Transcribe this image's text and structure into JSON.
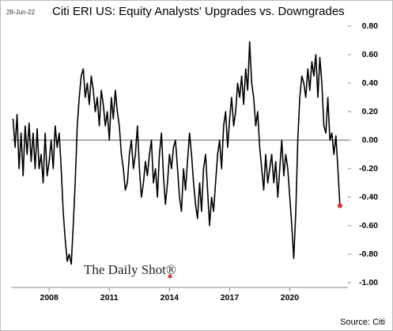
{
  "chart_data": {
    "type": "line",
    "date": "28-Jun-22",
    "title": "Citi ERI US: Equity Analysts' Upgrades vs. Downgrades",
    "watermark": "The Daily Shot®",
    "source": "Source: Citi",
    "x": [
      2006.2,
      2006.3,
      2006.4,
      2006.5,
      2006.6,
      2006.7,
      2006.8,
      2006.9,
      2007.0,
      2007.1,
      2007.2,
      2007.3,
      2007.4,
      2007.5,
      2007.6,
      2007.7,
      2007.8,
      2007.9,
      2008.0,
      2008.1,
      2008.2,
      2008.3,
      2008.4,
      2008.5,
      2008.6,
      2008.7,
      2008.8,
      2008.9,
      2009.0,
      2009.1,
      2009.2,
      2009.3,
      2009.4,
      2009.5,
      2009.6,
      2009.7,
      2009.8,
      2009.9,
      2010.0,
      2010.1,
      2010.2,
      2010.3,
      2010.4,
      2010.5,
      2010.6,
      2010.7,
      2010.8,
      2010.9,
      2011.0,
      2011.1,
      2011.2,
      2011.3,
      2011.4,
      2011.5,
      2011.6,
      2011.7,
      2011.8,
      2011.9,
      2012.0,
      2012.1,
      2012.2,
      2012.3,
      2012.4,
      2012.5,
      2012.6,
      2012.7,
      2012.8,
      2012.9,
      2013.0,
      2013.1,
      2013.2,
      2013.3,
      2013.4,
      2013.5,
      2013.6,
      2013.7,
      2013.8,
      2013.9,
      2014.0,
      2014.1,
      2014.2,
      2014.3,
      2014.4,
      2014.5,
      2014.6,
      2014.7,
      2014.8,
      2014.9,
      2015.0,
      2015.1,
      2015.2,
      2015.3,
      2015.4,
      2015.5,
      2015.6,
      2015.7,
      2015.8,
      2015.9,
      2016.0,
      2016.1,
      2016.2,
      2016.3,
      2016.4,
      2016.5,
      2016.6,
      2016.7,
      2016.8,
      2016.9,
      2017.0,
      2017.1,
      2017.2,
      2017.3,
      2017.4,
      2017.5,
      2017.6,
      2017.7,
      2017.8,
      2017.9,
      2018.0,
      2018.1,
      2018.2,
      2018.3,
      2018.4,
      2018.5,
      2018.6,
      2018.7,
      2018.8,
      2018.9,
      2019.0,
      2019.1,
      2019.2,
      2019.3,
      2019.4,
      2019.5,
      2019.6,
      2019.7,
      2019.8,
      2019.9,
      2020.0,
      2020.1,
      2020.2,
      2020.3,
      2020.4,
      2020.5,
      2020.6,
      2020.7,
      2020.8,
      2020.9,
      2021.0,
      2021.1,
      2021.2,
      2021.3,
      2021.4,
      2021.5,
      2021.6,
      2021.7,
      2021.8,
      2021.9,
      2022.0,
      2022.1,
      2022.2,
      2022.3,
      2022.4,
      2022.5
    ],
    "series": [
      {
        "color": "#000000",
        "last_point_color": "#e03030",
        "values": [
          0.15,
          -0.05,
          0.18,
          -0.2,
          0.05,
          -0.25,
          0.1,
          -0.1,
          0.12,
          -0.15,
          0.05,
          -0.2,
          0.08,
          -0.2,
          -0.1,
          -0.3,
          0.05,
          -0.25,
          -0.15,
          0.0,
          -0.2,
          0.1,
          -0.05,
          0.05,
          -0.2,
          -0.5,
          -0.7,
          -0.85,
          -0.8,
          -0.87,
          -0.6,
          -0.3,
          0.1,
          0.3,
          0.45,
          0.5,
          0.3,
          0.4,
          0.25,
          0.45,
          0.35,
          0.2,
          0.3,
          0.1,
          0.35,
          0.25,
          0.1,
          0.2,
          0.0,
          0.3,
          0.15,
          0.35,
          0.2,
          0.1,
          -0.1,
          -0.2,
          -0.35,
          -0.3,
          -0.1,
          0.0,
          -0.2,
          -0.1,
          0.1,
          -0.2,
          -0.4,
          -0.3,
          -0.15,
          -0.25,
          -0.1,
          0.0,
          -0.3,
          -0.2,
          -0.4,
          -0.1,
          0.05,
          -0.25,
          -0.45,
          -0.3,
          -0.1,
          -0.2,
          -0.05,
          0.0,
          -0.2,
          -0.4,
          -0.5,
          -0.2,
          -0.35,
          -0.15,
          0.05,
          -0.1,
          -0.3,
          -0.45,
          -0.55,
          -0.3,
          -0.5,
          -0.2,
          -0.1,
          -0.35,
          -0.6,
          -0.4,
          -0.5,
          -0.3,
          -0.1,
          0.0,
          -0.2,
          0.1,
          0.2,
          -0.05,
          0.15,
          0.3,
          0.1,
          0.2,
          0.4,
          0.3,
          0.45,
          0.25,
          0.5,
          0.35,
          0.69,
          0.4,
          0.3,
          0.1,
          0.2,
          -0.05,
          -0.2,
          -0.35,
          -0.1,
          -0.3,
          -0.2,
          -0.1,
          -0.3,
          -0.15,
          -0.4,
          -0.2,
          0.0,
          -0.25,
          -0.1,
          -0.2,
          -0.4,
          -0.6,
          -0.83,
          -0.5,
          0.0,
          0.3,
          0.45,
          0.4,
          0.3,
          0.5,
          0.35,
          0.55,
          0.45,
          0.6,
          0.3,
          0.58,
          0.4,
          0.1,
          0.05,
          0.3,
          0.0,
          0.05,
          -0.1,
          0.03,
          -0.2,
          -0.46
        ]
      }
    ],
    "xlim": [
      2006.1,
      2022.9
    ],
    "xticks": [
      2008,
      2011,
      2014,
      2017,
      2020
    ],
    "ylim": [
      -1.0,
      0.8
    ],
    "yticks": [
      {
        "value": 0.8,
        "label": "0.80"
      },
      {
        "value": 0.6,
        "label": "0.60"
      },
      {
        "value": 0.4,
        "label": "0.40"
      },
      {
        "value": 0.2,
        "label": "0.20"
      },
      {
        "value": 0,
        "label": "0.00"
      },
      {
        "value": -0.2,
        "label": "-0.20"
      },
      {
        "value": -0.4,
        "label": "-0.40"
      },
      {
        "value": -0.6,
        "label": "-0.60"
      },
      {
        "value": -0.8,
        "label": "-0.80"
      },
      {
        "value": -1.0,
        "label": "-1.00"
      }
    ],
    "zero_line": true
  }
}
